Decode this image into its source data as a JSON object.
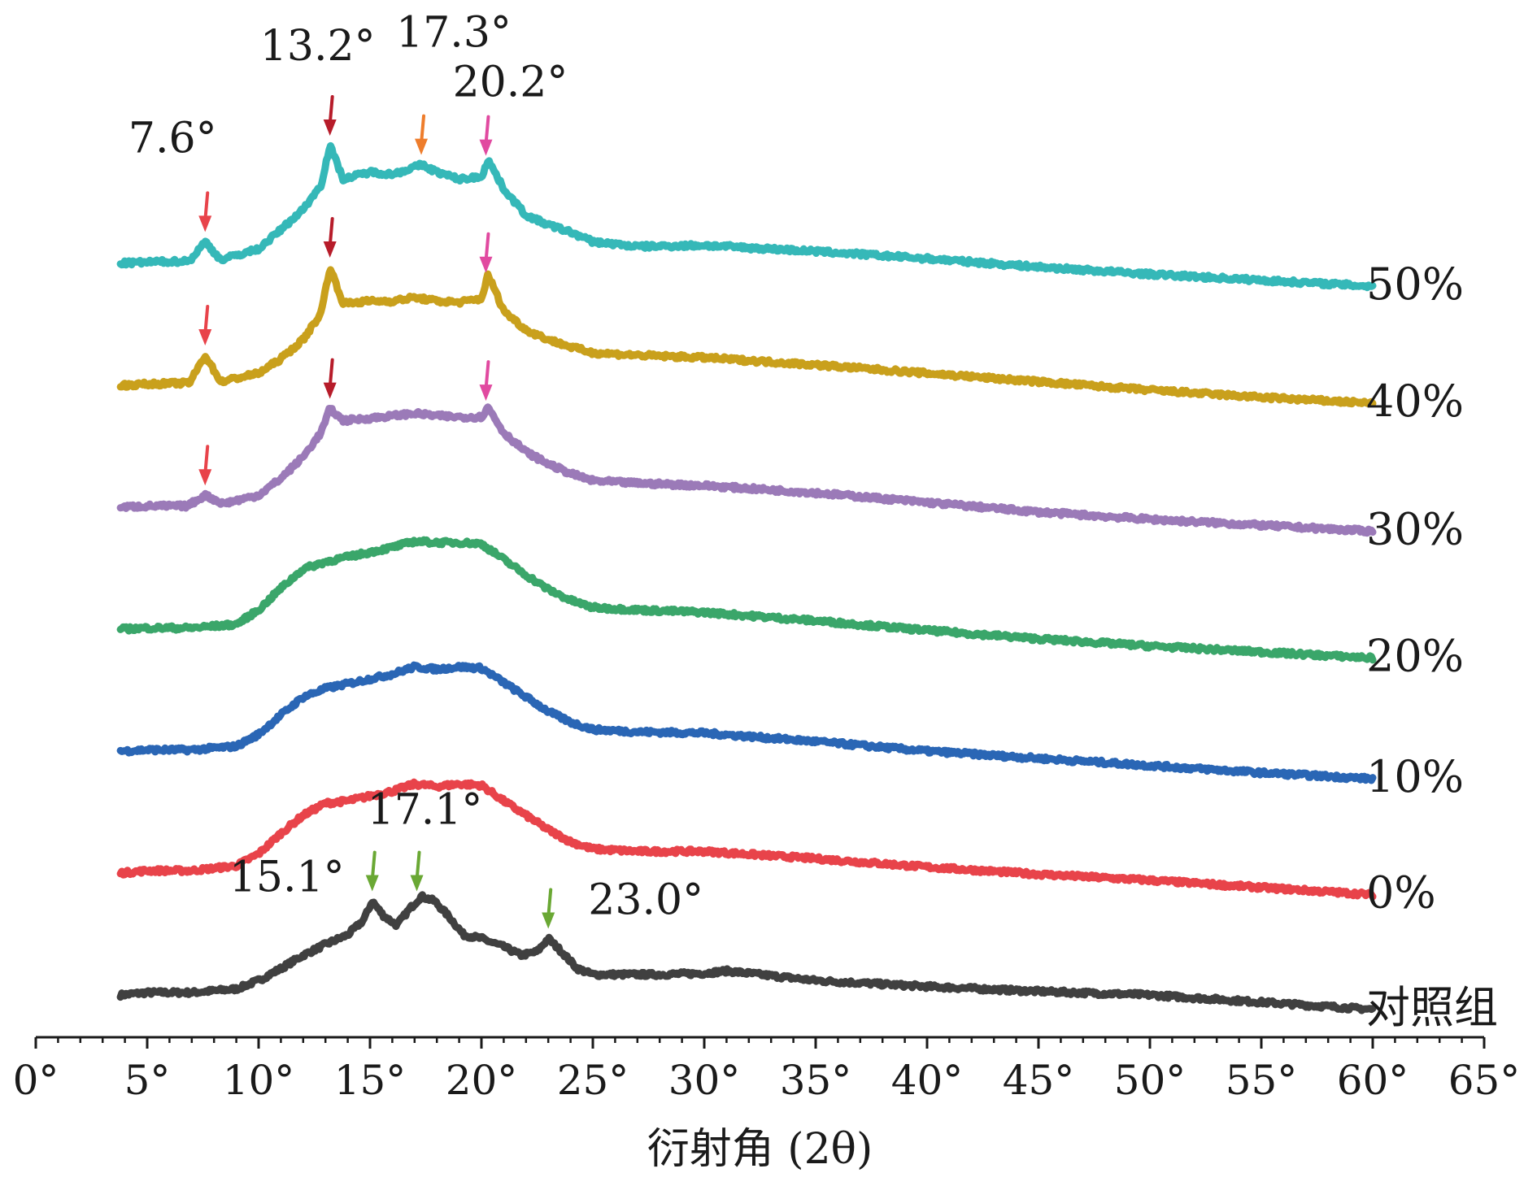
{
  "chart_data": {
    "type": "line",
    "title": "",
    "xlabel": "衍射角 (2θ)",
    "ylabel": "",
    "xlim": [
      0,
      65
    ],
    "x_ticks": [
      0,
      5,
      10,
      15,
      20,
      25,
      30,
      35,
      40,
      45,
      50,
      55,
      60,
      65
    ],
    "x_tick_labels": [
      "0°",
      "5°",
      "10°",
      "15°",
      "20°",
      "25°",
      "30°",
      "35°",
      "40°",
      "45°",
      "50°",
      "55°",
      "60°",
      "65°"
    ],
    "offset_step": 1.0,
    "series": [
      {
        "name": "对照组",
        "color": "#404040",
        "offset": 0,
        "x": [
          3.8,
          5,
          7,
          9,
          10,
          11,
          12,
          13,
          14,
          14.7,
          15.1,
          15.6,
          16.2,
          16.8,
          17.3,
          17.9,
          18.6,
          19.2,
          20,
          21,
          21.8,
          22.5,
          23.0,
          23.6,
          24.3,
          25,
          26,
          28,
          30,
          31,
          33,
          35,
          40,
          45,
          50,
          55,
          60
        ],
        "y": [
          0,
          0.02,
          0.02,
          0.05,
          0.12,
          0.22,
          0.33,
          0.42,
          0.5,
          0.62,
          0.78,
          0.66,
          0.58,
          0.72,
          0.82,
          0.78,
          0.64,
          0.5,
          0.47,
          0.4,
          0.33,
          0.36,
          0.47,
          0.36,
          0.22,
          0.17,
          0.17,
          0.17,
          0.18,
          0.2,
          0.16,
          0.12,
          0.07,
          0.03,
          0.0,
          -0.06,
          -0.12
        ]
      },
      {
        "name": "0%",
        "color": "#e8434a",
        "offset": 1,
        "x": [
          3.8,
          5,
          7,
          9,
          10,
          11,
          12,
          13,
          14,
          15,
          16,
          17,
          18,
          19,
          20,
          21,
          22,
          23,
          24,
          25,
          27,
          30,
          35,
          40,
          45,
          50,
          55,
          60
        ],
        "y": [
          0,
          0.02,
          0.02,
          0.06,
          0.16,
          0.33,
          0.48,
          0.58,
          0.6,
          0.64,
          0.68,
          0.74,
          0.72,
          0.74,
          0.73,
          0.6,
          0.48,
          0.36,
          0.26,
          0.2,
          0.18,
          0.18,
          0.12,
          0.05,
          -0.01,
          -0.06,
          -0.12,
          -0.18
        ]
      },
      {
        "name": "10%",
        "color": "#2a66b5",
        "offset": 2,
        "x": [
          3.8,
          5,
          7,
          9,
          10,
          11,
          12,
          13,
          14,
          15,
          16,
          17,
          18,
          19,
          20,
          21,
          22,
          23,
          24,
          25,
          27,
          30,
          35,
          40,
          45,
          50,
          55,
          60
        ],
        "y": [
          0,
          0.01,
          0.01,
          0.04,
          0.14,
          0.3,
          0.45,
          0.52,
          0.56,
          0.6,
          0.64,
          0.7,
          0.68,
          0.7,
          0.69,
          0.57,
          0.45,
          0.33,
          0.24,
          0.18,
          0.16,
          0.15,
          0.08,
          0.0,
          -0.06,
          -0.12,
          -0.18,
          -0.23
        ]
      },
      {
        "name": "20%",
        "color": "#3aa66a",
        "offset": 3,
        "x": [
          3.8,
          5,
          7,
          9,
          10,
          11,
          12,
          13,
          14,
          15,
          16,
          17,
          18,
          19,
          20,
          21,
          22,
          23,
          24,
          25,
          27,
          30,
          35,
          40,
          45,
          50,
          55,
          60
        ],
        "y": [
          0,
          0.01,
          0.01,
          0.04,
          0.16,
          0.34,
          0.5,
          0.56,
          0.6,
          0.64,
          0.68,
          0.73,
          0.72,
          0.72,
          0.71,
          0.58,
          0.45,
          0.33,
          0.24,
          0.18,
          0.16,
          0.14,
          0.07,
          -0.01,
          -0.08,
          -0.14,
          -0.19,
          -0.24
        ]
      },
      {
        "name": "30%",
        "color": "#9b7ab8",
        "offset": 4,
        "x": [
          3.8,
          5,
          6.8,
          7.6,
          8.4,
          10,
          11,
          12,
          12.8,
          13.2,
          13.8,
          15,
          16,
          17,
          18,
          19,
          20,
          20.3,
          21,
          22,
          23,
          24,
          25,
          27,
          30,
          35,
          40,
          45,
          50,
          55,
          60
        ],
        "y": [
          0,
          0.01,
          0.01,
          0.1,
          0.03,
          0.1,
          0.24,
          0.42,
          0.62,
          0.82,
          0.72,
          0.74,
          0.76,
          0.78,
          0.76,
          0.75,
          0.75,
          0.83,
          0.62,
          0.46,
          0.36,
          0.28,
          0.22,
          0.2,
          0.18,
          0.12,
          0.04,
          -0.04,
          -0.1,
          -0.15,
          -0.2
        ]
      },
      {
        "name": "40%",
        "color": "#c9a01c",
        "offset": 5,
        "x": [
          3.8,
          5,
          6.9,
          7.6,
          8.3,
          10,
          11,
          12,
          12.8,
          13.2,
          13.8,
          15,
          16,
          17,
          18,
          19,
          20,
          20.3,
          21,
          22,
          23,
          24,
          25,
          27,
          30,
          35,
          40,
          45,
          50,
          55,
          60
        ],
        "y": [
          0,
          0.01,
          0.02,
          0.25,
          0.03,
          0.1,
          0.22,
          0.38,
          0.6,
          0.98,
          0.68,
          0.7,
          0.7,
          0.73,
          0.7,
          0.69,
          0.72,
          0.92,
          0.62,
          0.46,
          0.38,
          0.32,
          0.27,
          0.25,
          0.23,
          0.17,
          0.1,
          0.03,
          -0.04,
          -0.1,
          -0.15
        ]
      },
      {
        "name": "50%",
        "color": "#35b8b8",
        "offset": 6,
        "x": [
          3.8,
          5,
          6.9,
          7.6,
          8.3,
          10,
          11,
          12,
          12.8,
          13.2,
          13.8,
          15,
          16,
          17,
          17.3,
          18,
          19,
          20,
          20.3,
          21,
          22,
          23,
          24,
          25,
          27,
          30,
          35,
          40,
          45,
          50,
          55,
          60
        ],
        "y": [
          0,
          0.01,
          0.02,
          0.18,
          0.03,
          0.12,
          0.28,
          0.45,
          0.65,
          0.98,
          0.7,
          0.76,
          0.74,
          0.8,
          0.82,
          0.76,
          0.7,
          0.72,
          0.86,
          0.62,
          0.4,
          0.32,
          0.26,
          0.18,
          0.14,
          0.15,
          0.1,
          0.04,
          -0.03,
          -0.09,
          -0.14,
          -0.19
        ]
      }
    ],
    "annotations": [
      {
        "label": "7.6°",
        "x": 7.6,
        "series": "50%",
        "color": "#e8434a"
      },
      {
        "label": "13.2°",
        "x": 13.2,
        "series": "50%",
        "color": "#b71c2a"
      },
      {
        "label": "17.3°",
        "x": 17.3,
        "series": "50%",
        "color": "#ee7d2c"
      },
      {
        "label": "20.2°",
        "x": 20.2,
        "series": "50%",
        "color": "#e14aa0"
      },
      {
        "label": "",
        "x": 7.6,
        "series": "40%",
        "color": "#e8434a"
      },
      {
        "label": "",
        "x": 13.2,
        "series": "40%",
        "color": "#b71c2a"
      },
      {
        "label": "",
        "x": 20.2,
        "series": "40%",
        "color": "#e14aa0"
      },
      {
        "label": "",
        "x": 7.6,
        "series": "30%",
        "color": "#e8434a"
      },
      {
        "label": "",
        "x": 13.2,
        "series": "30%",
        "color": "#b71c2a"
      },
      {
        "label": "",
        "x": 20.2,
        "series": "30%",
        "color": "#e14aa0"
      },
      {
        "label": "15.1°",
        "x": 15.1,
        "series": "对照组",
        "color": "#6aa834"
      },
      {
        "label": "17.1°",
        "x": 17.1,
        "series": "对照组",
        "color": "#6aa834"
      },
      {
        "label": "23.0°",
        "x": 23.0,
        "series": "对照组",
        "color": "#6aa834"
      }
    ],
    "grid": false,
    "legend": "series labels at right end of each trace"
  }
}
